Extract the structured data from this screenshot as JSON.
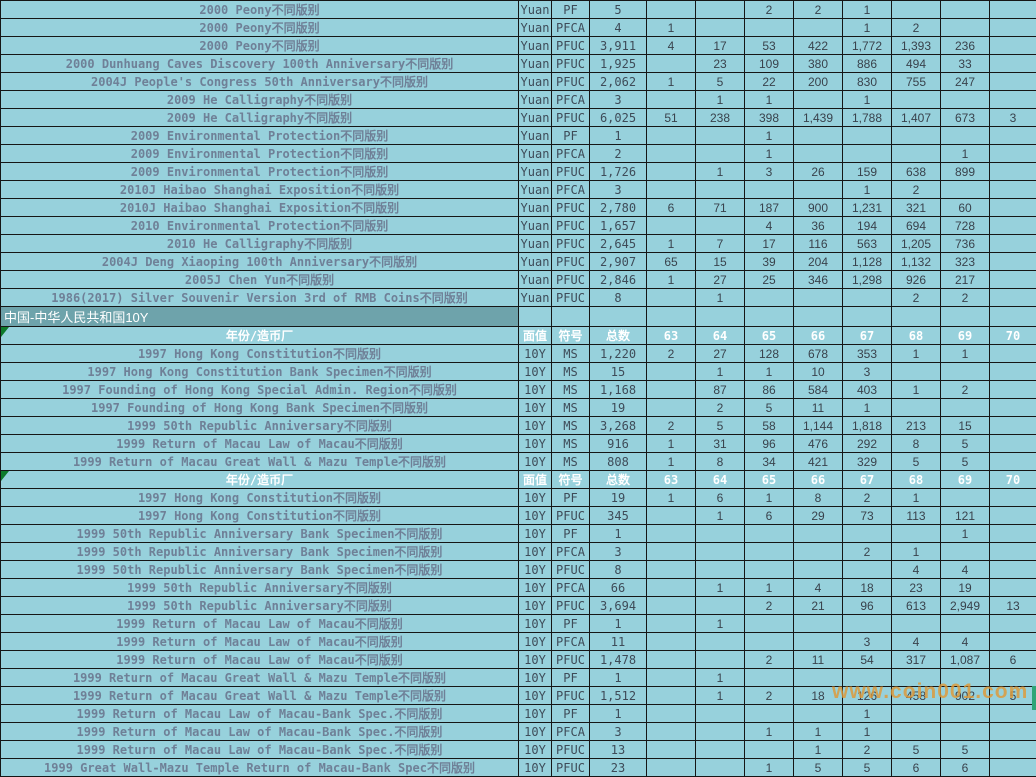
{
  "section_title": "中国-中华人民共和国10Y",
  "watermark": {
    "text": "www.coin001.com",
    "color": "#e09a38"
  },
  "colors": {
    "cell_bg": "#97d1dc",
    "section_bg": "#6ea3ab",
    "grid": "#161616",
    "description_text": "#6f8097",
    "number_text": "#39424c",
    "header_text": "#ffffff",
    "corner_triangle": "#0e7a2b",
    "edge_marker": "#2fa578"
  },
  "header": {
    "year_mint": "年份/造币厂",
    "denom": "面值",
    "symbol": "符号",
    "total": "总数",
    "grades": [
      "63",
      "64",
      "65",
      "66",
      "67",
      "68",
      "69",
      "70"
    ]
  },
  "table": {
    "rows": [
      {
        "t": "d",
        "desc": "2000 Peony不同版别",
        "denom": "Yuan",
        "sym": "PF",
        "total": "5",
        "g": [
          "",
          "",
          "2",
          "2",
          "1",
          "",
          "",
          ""
        ]
      },
      {
        "t": "d",
        "desc": "2000 Peony不同版别",
        "denom": "Yuan",
        "sym": "PFCA",
        "total": "4",
        "g": [
          "1",
          "",
          "",
          "",
          "1",
          "2",
          "",
          ""
        ]
      },
      {
        "t": "d",
        "desc": "2000 Peony不同版别",
        "denom": "Yuan",
        "sym": "PFUC",
        "total": "3,911",
        "g": [
          "4",
          "17",
          "53",
          "422",
          "1,772",
          "1,393",
          "236",
          ""
        ]
      },
      {
        "t": "d",
        "desc": "2000 Dunhuang Caves Discovery 100th Anniversary不同版别",
        "denom": "Yuan",
        "sym": "PFUC",
        "total": "1,925",
        "g": [
          "",
          "23",
          "109",
          "380",
          "886",
          "494",
          "33",
          ""
        ]
      },
      {
        "t": "d",
        "desc": "2004J People's Congress 50th Anniversary不同版别",
        "denom": "Yuan",
        "sym": "PFUC",
        "total": "2,062",
        "g": [
          "1",
          "5",
          "22",
          "200",
          "830",
          "755",
          "247",
          ""
        ]
      },
      {
        "t": "d",
        "desc": "2009 He Calligraphy不同版别",
        "denom": "Yuan",
        "sym": "PFCA",
        "total": "3",
        "g": [
          "",
          "1",
          "1",
          "",
          "1",
          "",
          "",
          ""
        ]
      },
      {
        "t": "d",
        "desc": "2009 He Calligraphy不同版别",
        "denom": "Yuan",
        "sym": "PFUC",
        "total": "6,025",
        "g": [
          "51",
          "238",
          "398",
          "1,439",
          "1,788",
          "1,407",
          "673",
          "3"
        ]
      },
      {
        "t": "d",
        "desc": "2009 Environmental Protection不同版别",
        "denom": "Yuan",
        "sym": "PF",
        "total": "1",
        "g": [
          "",
          "",
          "1",
          "",
          "",
          "",
          "",
          ""
        ]
      },
      {
        "t": "d",
        "desc": "2009 Environmental Protection不同版别",
        "denom": "Yuan",
        "sym": "PFCA",
        "total": "2",
        "g": [
          "",
          "",
          "1",
          "",
          "",
          "",
          "1",
          ""
        ]
      },
      {
        "t": "d",
        "desc": "2009 Environmental Protection不同版别",
        "denom": "Yuan",
        "sym": "PFUC",
        "total": "1,726",
        "g": [
          "",
          "1",
          "3",
          "26",
          "159",
          "638",
          "899",
          ""
        ]
      },
      {
        "t": "d",
        "desc": "2010J Haibao Shanghai Exposition不同版别",
        "denom": "Yuan",
        "sym": "PFCA",
        "total": "3",
        "g": [
          "",
          "",
          "",
          "",
          "1",
          "2",
          "",
          ""
        ]
      },
      {
        "t": "d",
        "desc": "2010J Haibao Shanghai Exposition不同版别",
        "denom": "Yuan",
        "sym": "PFUC",
        "total": "2,780",
        "g": [
          "6",
          "71",
          "187",
          "900",
          "1,231",
          "321",
          "60",
          ""
        ]
      },
      {
        "t": "d",
        "desc": "2010 Environmental Protection不同版别",
        "denom": "Yuan",
        "sym": "PFUC",
        "total": "1,657",
        "g": [
          "",
          "",
          "4",
          "36",
          "194",
          "694",
          "728",
          ""
        ]
      },
      {
        "t": "d",
        "desc": "2010 He Calligraphy不同版别",
        "denom": "Yuan",
        "sym": "PFUC",
        "total": "2,645",
        "g": [
          "1",
          "7",
          "17",
          "116",
          "563",
          "1,205",
          "736",
          ""
        ]
      },
      {
        "t": "d",
        "desc": "2004J Deng Xiaoping 100th Anniversary不同版别",
        "denom": "Yuan",
        "sym": "PFUC",
        "total": "2,907",
        "g": [
          "65",
          "15",
          "39",
          "204",
          "1,128",
          "1,132",
          "323",
          ""
        ]
      },
      {
        "t": "d",
        "desc": "2005J Chen Yun不同版别",
        "denom": "Yuan",
        "sym": "PFUC",
        "total": "2,846",
        "g": [
          "1",
          "27",
          "25",
          "346",
          "1,298",
          "926",
          "217",
          ""
        ]
      },
      {
        "t": "d",
        "desc": "1986(2017) Silver Souvenir Version 3rd of RMB Coins不同版别",
        "denom": "Yuan",
        "sym": "PFUC",
        "total": "8",
        "g": [
          "",
          "1",
          "",
          "",
          "",
          "2",
          "2",
          ""
        ]
      },
      {
        "t": "s"
      },
      {
        "t": "h"
      },
      {
        "t": "d",
        "desc": "1997 Hong Kong Constitution不同版别",
        "denom": "10Y",
        "sym": "MS",
        "total": "1,220",
        "g": [
          "2",
          "27",
          "128",
          "678",
          "353",
          "1",
          "1",
          ""
        ]
      },
      {
        "t": "d",
        "desc": "1997 Hong Kong Constitution Bank Specimen不同版别",
        "denom": "10Y",
        "sym": "MS",
        "total": "15",
        "g": [
          "",
          "1",
          "1",
          "10",
          "3",
          "",
          "",
          ""
        ]
      },
      {
        "t": "d",
        "desc": "1997 Founding of Hong Kong Special Admin. Region不同版别",
        "denom": "10Y",
        "sym": "MS",
        "total": "1,168",
        "g": [
          "",
          "87",
          "86",
          "584",
          "403",
          "1",
          "2",
          ""
        ]
      },
      {
        "t": "d",
        "desc": "1997 Founding of Hong Kong Bank Specimen不同版别",
        "denom": "10Y",
        "sym": "MS",
        "total": "19",
        "g": [
          "",
          "2",
          "5",
          "11",
          "1",
          "",
          "",
          ""
        ]
      },
      {
        "t": "d",
        "desc": "1999 50th Republic Anniversary不同版别",
        "denom": "10Y",
        "sym": "MS",
        "total": "3,268",
        "g": [
          "2",
          "5",
          "58",
          "1,144",
          "1,818",
          "213",
          "15",
          ""
        ]
      },
      {
        "t": "d",
        "desc": "1999 Return of Macau Law of Macau不同版别",
        "denom": "10Y",
        "sym": "MS",
        "total": "916",
        "g": [
          "1",
          "31",
          "96",
          "476",
          "292",
          "8",
          "5",
          ""
        ]
      },
      {
        "t": "d",
        "desc": "1999 Return of Macau Great Wall & Mazu Temple不同版别",
        "denom": "10Y",
        "sym": "MS",
        "total": "808",
        "g": [
          "1",
          "8",
          "34",
          "421",
          "329",
          "5",
          "5",
          ""
        ]
      },
      {
        "t": "h"
      },
      {
        "t": "d",
        "desc": "1997 Hong Kong Constitution不同版别",
        "denom": "10Y",
        "sym": "PF",
        "total": "19",
        "g": [
          "1",
          "6",
          "1",
          "8",
          "2",
          "1",
          "",
          ""
        ]
      },
      {
        "t": "d",
        "desc": "1997 Hong Kong Constitution不同版别",
        "denom": "10Y",
        "sym": "PFUC",
        "total": "345",
        "g": [
          "",
          "1",
          "6",
          "29",
          "73",
          "113",
          "121",
          ""
        ]
      },
      {
        "t": "d",
        "desc": "1999 50th Republic Anniversary Bank Specimen不同版别",
        "denom": "10Y",
        "sym": "PF",
        "total": "1",
        "g": [
          "",
          "",
          "",
          "",
          "",
          "",
          "1",
          ""
        ]
      },
      {
        "t": "d",
        "desc": "1999 50th Republic Anniversary Bank Specimen不同版别",
        "denom": "10Y",
        "sym": "PFCA",
        "total": "3",
        "g": [
          "",
          "",
          "",
          "",
          "2",
          "1",
          "",
          ""
        ]
      },
      {
        "t": "d",
        "desc": "1999 50th Republic Anniversary Bank Specimen不同版别",
        "denom": "10Y",
        "sym": "PFUC",
        "total": "8",
        "g": [
          "",
          "",
          "",
          "",
          "",
          "4",
          "4",
          ""
        ]
      },
      {
        "t": "d",
        "desc": "1999 50th Republic Anniversary不同版别",
        "denom": "10Y",
        "sym": "PFCA",
        "total": "66",
        "g": [
          "",
          "1",
          "1",
          "4",
          "18",
          "23",
          "19",
          ""
        ]
      },
      {
        "t": "d",
        "desc": "1999 50th Republic Anniversary不同版别",
        "denom": "10Y",
        "sym": "PFUC",
        "total": "3,694",
        "g": [
          "",
          "",
          "2",
          "21",
          "96",
          "613",
          "2,949",
          "13"
        ]
      },
      {
        "t": "d",
        "desc": "1999 Return of Macau Law of Macau不同版别",
        "denom": "10Y",
        "sym": "PF",
        "total": "1",
        "g": [
          "",
          "1",
          "",
          "",
          "",
          "",
          "",
          ""
        ]
      },
      {
        "t": "d",
        "desc": "1999 Return of Macau Law of Macau不同版别",
        "denom": "10Y",
        "sym": "PFCA",
        "total": "11",
        "g": [
          "",
          "",
          "",
          "",
          "3",
          "4",
          "4",
          ""
        ]
      },
      {
        "t": "d",
        "desc": "1999 Return of Macau Law of Macau不同版别",
        "denom": "10Y",
        "sym": "PFUC",
        "total": "1,478",
        "g": [
          "",
          "",
          "2",
          "11",
          "54",
          "317",
          "1,087",
          "6"
        ]
      },
      {
        "t": "d",
        "desc": "1999 Return of Macau Great Wall & Mazu Temple不同版别",
        "denom": "10Y",
        "sym": "PF",
        "total": "1",
        "g": [
          "",
          "1",
          "",
          "",
          "",
          "",
          "",
          ""
        ]
      },
      {
        "t": "d",
        "desc": "1999 Return of Macau Great Wall & Mazu Temple不同版别",
        "denom": "10Y",
        "sym": "PFUC",
        "total": "1,512",
        "g": [
          "",
          "1",
          "2",
          "18",
          "126",
          "458",
          "902",
          "5"
        ]
      },
      {
        "t": "d",
        "desc": "1999 Return of Macau Law of Macau-Bank Spec.不同版别",
        "denom": "10Y",
        "sym": "PF",
        "total": "1",
        "g": [
          "",
          "",
          "",
          "",
          "1",
          "",
          "",
          ""
        ]
      },
      {
        "t": "d",
        "desc": "1999 Return of Macau Law of Macau-Bank Spec.不同版别",
        "denom": "10Y",
        "sym": "PFCA",
        "total": "3",
        "g": [
          "",
          "",
          "1",
          "1",
          "1",
          "",
          "",
          ""
        ]
      },
      {
        "t": "d",
        "desc": "1999 Return of Macau Law of Macau-Bank Spec.不同版别",
        "denom": "10Y",
        "sym": "PFUC",
        "total": "13",
        "g": [
          "",
          "",
          "",
          "1",
          "2",
          "5",
          "5",
          ""
        ]
      },
      {
        "t": "d",
        "desc": "1999 Great Wall-Mazu Temple Return of Macau-Bank Spec不同版别",
        "denom": "10Y",
        "sym": "PFUC",
        "total": "23",
        "g": [
          "",
          "",
          "1",
          "5",
          "5",
          "6",
          "6",
          ""
        ]
      }
    ]
  }
}
